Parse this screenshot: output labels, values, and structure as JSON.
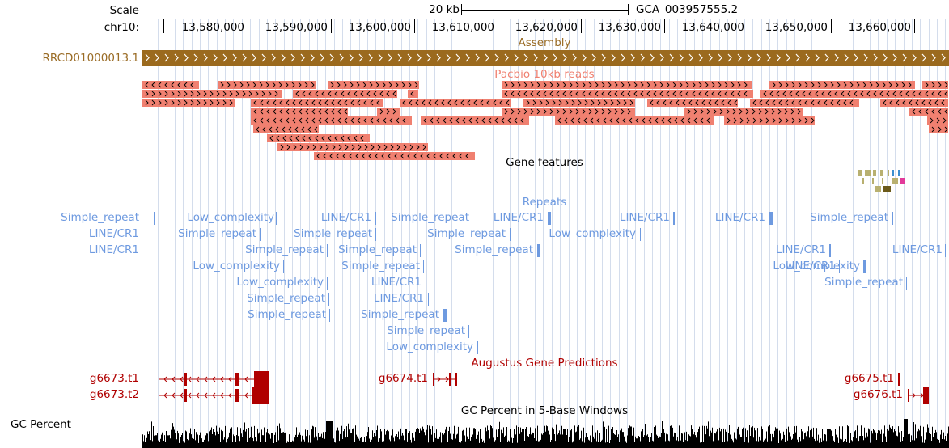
{
  "scale": {
    "label": "Scale",
    "bar_label": "20 kb",
    "assembly": "GCA_003957555.2"
  },
  "ruler": {
    "chrom_label": "chr10:",
    "ticks": [
      "13,580,000",
      "13,590,000",
      "13,600,000",
      "13,610,000",
      "13,620,000",
      "13,630,000",
      "13,640,000",
      "13,650,000",
      "13,660,000"
    ]
  },
  "assembly_track": {
    "title": "Assembly",
    "item_label": "RRCD01000013.1",
    "color": "#9b6a1e"
  },
  "pacbio_track": {
    "title": "Pacbio 10kb reads",
    "color": "#f08070"
  },
  "gene_features_track": {
    "title": "Gene features"
  },
  "repeats_track": {
    "title": "Repeats",
    "color": "#6e9ae0",
    "labels": [
      "Simple_repeat",
      "Low_complexity",
      "LINE/CR1",
      "Simple_repeat",
      "LINE/CR1",
      "LINE/CR1",
      "LINE/CR1",
      "Simple_repeat",
      "LINE/CR1",
      "Simple_repeat",
      "Simple_repeat",
      "Simple_repeat",
      "Low_complexity",
      "LINE/CR1",
      "Simple_repeat",
      "Simple_repeat",
      "Simple_repeat",
      "LINE/CR1",
      "LINE/CR1",
      "Low_complexity",
      "Simple_repeat",
      "LINE/CR1",
      "Low_complexity",
      "Low_complexity",
      "LINE/CR1",
      "Simple_repeat",
      "Simple_repeat",
      "LINE/CR1",
      "Simple_repeat",
      "Simple_repeat",
      "Simple_repeat",
      "Low_complexity"
    ]
  },
  "augustus_track": {
    "title": "Augustus Gene Predictions",
    "color": "#b00000",
    "genes": [
      "g6673.t1",
      "g6673.t2",
      "g6674.t1",
      "g6675.t1",
      "g6676.t1"
    ]
  },
  "gc_track": {
    "side_label": "GC Percent",
    "title": "GC Percent in 5-Base Windows"
  }
}
